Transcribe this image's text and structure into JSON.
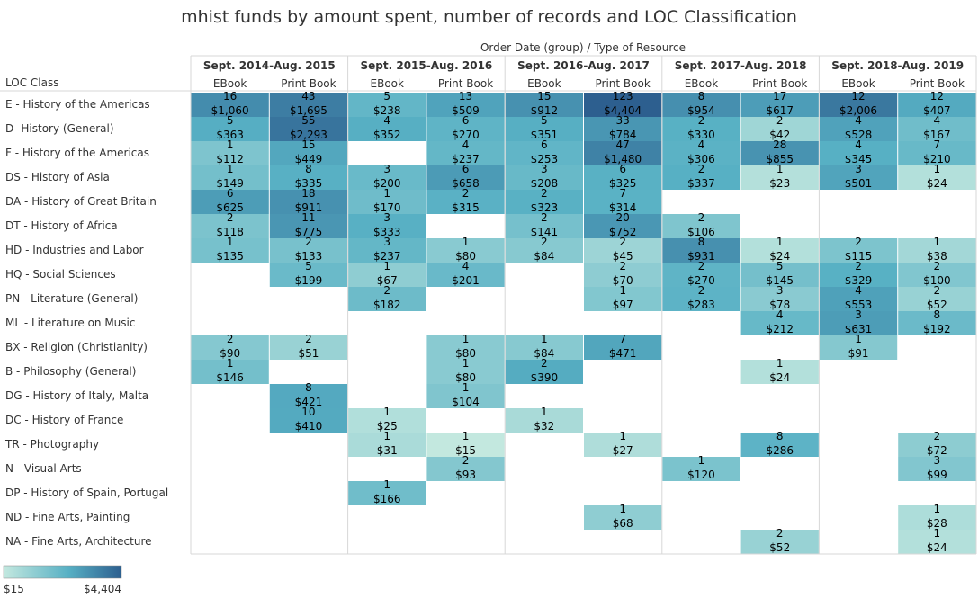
{
  "title": "mhist funds by amount spent, number of records and LOC Classification",
  "header_caption": "Order Date (group)  /  Type of Resource",
  "row_header": "LOC Class",
  "colors": {
    "low": "#c3e8df",
    "mid": "#57b0c4",
    "high": "#2d5f8f",
    "grid": "#d7d7d7",
    "text": "#333333"
  },
  "chart_data": {
    "type": "heatmap",
    "title": "mhist funds by amount spent, number of records and LOC Classification",
    "periods": [
      "Sept. 2014-Aug. 2015",
      "Sept. 2015-Aug. 2016",
      "Sept. 2016-Aug. 2017",
      "Sept. 2017-Aug. 2018",
      "Sept. 2018-Aug. 2019"
    ],
    "types": [
      "EBook",
      "Print Book"
    ],
    "rows": [
      "E - History of the Americas",
      "D- History (General)",
      "F - History of the Americas",
      "DS - History of Asia",
      "DA - History of Great Britain",
      "DT - History of Africa",
      "HD - Industries and Labor",
      "HQ - Social Sciences",
      "PN - Literature (General)",
      "ML - Literature on Music",
      "BX - Religion (Christianity)",
      "B - Philosophy (General)",
      "DG - History of Italy, Malta",
      "DC - History of France",
      "TR - Photography",
      "N - Visual Arts",
      "DP - History of Spain, Portugal",
      "ND - Fine Arts, Painting",
      "NA - Fine Arts, Architecture"
    ],
    "counts": [
      [
        16,
        43,
        5,
        13,
        15,
        123,
        8,
        17,
        12,
        12
      ],
      [
        5,
        55,
        4,
        6,
        5,
        33,
        2,
        2,
        4,
        4
      ],
      [
        1,
        15,
        null,
        4,
        6,
        47,
        4,
        28,
        4,
        7
      ],
      [
        1,
        8,
        3,
        6,
        3,
        6,
        2,
        1,
        3,
        1
      ],
      [
        6,
        18,
        1,
        2,
        2,
        7,
        null,
        null,
        null,
        null
      ],
      [
        2,
        11,
        3,
        null,
        2,
        20,
        2,
        null,
        null,
        null
      ],
      [
        1,
        2,
        3,
        1,
        2,
        2,
        8,
        1,
        2,
        1
      ],
      [
        null,
        5,
        1,
        4,
        null,
        2,
        2,
        5,
        2,
        2
      ],
      [
        null,
        null,
        2,
        null,
        null,
        1,
        2,
        3,
        4,
        2
      ],
      [
        null,
        null,
        null,
        null,
        null,
        null,
        null,
        4,
        3,
        8
      ],
      [
        2,
        2,
        null,
        1,
        1,
        7,
        null,
        null,
        1,
        null
      ],
      [
        1,
        null,
        null,
        1,
        2,
        null,
        null,
        1,
        null,
        null
      ],
      [
        null,
        8,
        null,
        1,
        null,
        null,
        null,
        null,
        null,
        null
      ],
      [
        null,
        10,
        1,
        null,
        1,
        null,
        null,
        null,
        null,
        null
      ],
      [
        null,
        null,
        1,
        1,
        null,
        1,
        null,
        8,
        null,
        2
      ],
      [
        null,
        null,
        null,
        2,
        null,
        null,
        1,
        null,
        null,
        3
      ],
      [
        null,
        null,
        1,
        null,
        null,
        null,
        null,
        null,
        null,
        null
      ],
      [
        null,
        null,
        null,
        null,
        null,
        1,
        null,
        null,
        null,
        1
      ],
      [
        null,
        null,
        null,
        null,
        null,
        null,
        null,
        2,
        null,
        1
      ]
    ],
    "amounts": [
      [
        "$1,060",
        "$1,695",
        "$238",
        "$509",
        "$912",
        "$4,404",
        "$954",
        "$617",
        "$2,006",
        "$407"
      ],
      [
        "$363",
        "$2,293",
        "$352",
        "$270",
        "$351",
        "$784",
        "$330",
        "$42",
        "$528",
        "$167"
      ],
      [
        "$112",
        "$449",
        null,
        "$237",
        "$253",
        "$1,480",
        "$306",
        "$855",
        "$345",
        "$210"
      ],
      [
        "$149",
        "$335",
        "$200",
        "$658",
        "$208",
        "$325",
        "$337",
        "$23",
        "$501",
        "$24"
      ],
      [
        "$625",
        "$911",
        "$170",
        "$315",
        "$323",
        "$314",
        null,
        null,
        null,
        null
      ],
      [
        "$118",
        "$775",
        "$333",
        null,
        "$141",
        "$752",
        "$106",
        null,
        null,
        null
      ],
      [
        "$135",
        "$133",
        "$237",
        "$80",
        "$84",
        "$45",
        "$931",
        "$24",
        "$115",
        "$38"
      ],
      [
        null,
        "$199",
        "$67",
        "$201",
        null,
        "$70",
        "$270",
        "$145",
        "$329",
        "$100"
      ],
      [
        null,
        null,
        "$182",
        null,
        null,
        "$97",
        "$283",
        "$78",
        "$553",
        "$52"
      ],
      [
        null,
        null,
        null,
        null,
        null,
        null,
        null,
        "$212",
        "$631",
        "$192"
      ],
      [
        "$90",
        "$51",
        null,
        "$80",
        "$84",
        "$471",
        null,
        null,
        "$91",
        null
      ],
      [
        "$146",
        null,
        null,
        "$80",
        "$390",
        null,
        null,
        "$24",
        null,
        null
      ],
      [
        null,
        "$421",
        null,
        "$104",
        null,
        null,
        null,
        null,
        null,
        null
      ],
      [
        null,
        "$410",
        "$25",
        null,
        "$32",
        null,
        null,
        null,
        null,
        null
      ],
      [
        null,
        null,
        "$31",
        "$15",
        null,
        "$27",
        null,
        "$286",
        null,
        "$72"
      ],
      [
        null,
        null,
        null,
        "$93",
        null,
        null,
        "$120",
        null,
        null,
        "$99"
      ],
      [
        null,
        null,
        "$166",
        null,
        null,
        null,
        null,
        null,
        null,
        null
      ],
      [
        null,
        null,
        null,
        null,
        null,
        "$68",
        null,
        null,
        null,
        "$28"
      ],
      [
        null,
        null,
        null,
        null,
        null,
        null,
        null,
        "$52",
        null,
        "$24"
      ]
    ],
    "color_range": [
      15,
      4404
    ],
    "legend": {
      "min_label": "$15",
      "max_label": "$4,404",
      "position": "bottom-left"
    }
  }
}
